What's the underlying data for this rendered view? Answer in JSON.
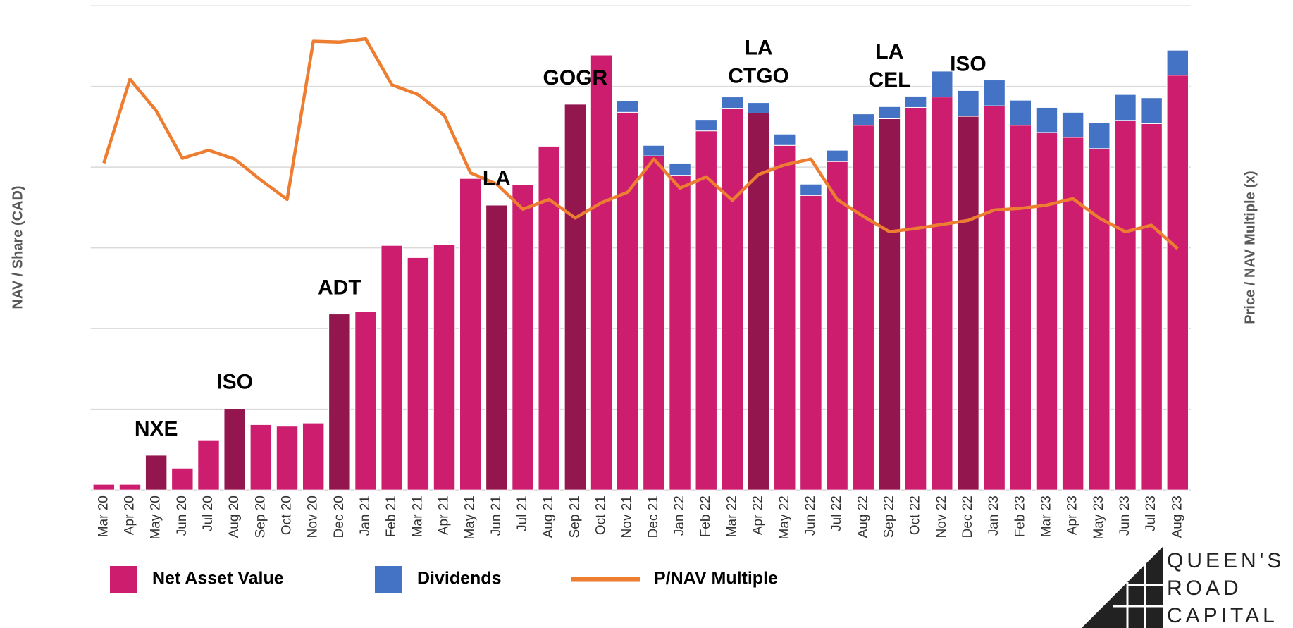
{
  "chart_data": {
    "type": "bar",
    "y_label": "NAV / Share (CAD)",
    "y2_label": "Price / NAV Multiple (x)",
    "categories": [
      "Mar 20",
      "Apr 20",
      "May 20",
      "Jun 20",
      "Jul 20",
      "Aug 20",
      "Sep 20",
      "Oct 20",
      "Nov 20",
      "Dec 20",
      "Jan 21",
      "Feb 21",
      "Mar 21",
      "Apr 21",
      "May 21",
      "Jun 21",
      "Jul 21",
      "Aug 21",
      "Sep 21",
      "Oct 21",
      "Nov 21",
      "Dec 21",
      "Jan 22",
      "Feb 22",
      "Mar 22",
      "Apr 22",
      "May 22",
      "Jun 22",
      "Jul 22",
      "Aug 22",
      "Sep 22",
      "Oct 22",
      "Nov 22",
      "Dec 22",
      "Jan 23",
      "Feb 23",
      "Mar 23",
      "Apr 23",
      "May 23",
      "Jun 23",
      "Jul 23",
      "Aug 23"
    ],
    "series": [
      {
        "name": "Net Asset Value",
        "color": "#cc1d6e",
        "stack": true,
        "colors": [
          "#cc1d6e",
          "#cc1d6e",
          "#93174e",
          "#cc1d6e",
          "#cc1d6e",
          "#93174e",
          "#cc1d6e",
          "#cc1d6e",
          "#cc1d6e",
          "#93174e",
          "#cc1d6e",
          "#cc1d6e",
          "#cc1d6e",
          "#cc1d6e",
          "#cc1d6e",
          "#93174e",
          "#cc1d6e",
          "#cc1d6e",
          "#93174e",
          "#cc1d6e",
          "#cc1d6e",
          "#cc1d6e",
          "#cc1d6e",
          "#cc1d6e",
          "#cc1d6e",
          "#93174e",
          "#cc1d6e",
          "#cc1d6e",
          "#cc1d6e",
          "#cc1d6e",
          "#93174e",
          "#cc1d6e",
          "#cc1d6e",
          "#93174e",
          "#cc1d6e",
          "#cc1d6e",
          "#cc1d6e",
          "#cc1d6e",
          "#cc1d6e",
          "#cc1d6e",
          "#cc1d6e",
          "#cc1d6e"
        ],
        "values": [
          0.07,
          0.07,
          0.43,
          0.27,
          0.62,
          1.01,
          0.81,
          0.79,
          0.83,
          2.18,
          2.21,
          3.03,
          2.88,
          3.04,
          3.86,
          3.53,
          3.78,
          4.26,
          4.78,
          5.39,
          4.68,
          4.14,
          3.9,
          4.45,
          4.73,
          4.67,
          4.27,
          3.65,
          4.07,
          4.52,
          4.6,
          4.74,
          4.87,
          4.63,
          4.76,
          4.52,
          4.43,
          4.37,
          4.23,
          4.58,
          4.54,
          5.14
        ]
      },
      {
        "name": "Dividends",
        "color": "#4472c4",
        "stack": true,
        "values": [
          null,
          null,
          null,
          null,
          null,
          null,
          null,
          null,
          null,
          null,
          null,
          null,
          null,
          null,
          null,
          null,
          null,
          null,
          null,
          null,
          0.14,
          0.13,
          0.15,
          0.14,
          0.14,
          0.13,
          0.14,
          0.14,
          0.14,
          0.14,
          0.15,
          0.14,
          0.32,
          0.32,
          0.32,
          0.31,
          0.31,
          0.31,
          0.32,
          0.32,
          0.32,
          0.31
        ]
      },
      {
        "name": "P/NAV Multiple",
        "color": "#ed7d31",
        "kind": "line",
        "axis": "y2",
        "values": [
          4.05,
          5.09,
          4.7,
          4.11,
          4.21,
          4.1,
          3.84,
          3.6,
          5.56,
          5.55,
          5.59,
          5.02,
          4.9,
          4.64,
          3.93,
          3.79,
          3.48,
          3.6,
          3.37,
          3.56,
          3.69,
          4.1,
          3.74,
          3.88,
          3.59,
          3.91,
          4.03,
          4.1,
          3.6,
          3.39,
          3.2,
          3.24,
          3.29,
          3.34,
          3.47,
          3.49,
          3.53,
          3.61,
          3.37,
          3.2,
          3.28,
          2.99
        ]
      }
    ],
    "ylim": [
      0,
      6
    ],
    "yticks": [
      0,
      1,
      2,
      3,
      4,
      5,
      6
    ],
    "grid": true,
    "y2lim": [
      0,
      6
    ],
    "annotations": [
      {
        "text": [
          "NXE"
        ],
        "category": "May 20"
      },
      {
        "text": [
          "ISO"
        ],
        "category": "Aug 20"
      },
      {
        "text": [
          "ADT"
        ],
        "category": "Dec 20"
      },
      {
        "text": [
          "LA"
        ],
        "category": "Jun 21"
      },
      {
        "text": [
          "GOGR"
        ],
        "category": "Sep 21"
      },
      {
        "text": [
          "LA",
          "CTGO"
        ],
        "category": "Apr 22"
      },
      {
        "text": [
          "LA",
          "CEL"
        ],
        "category": "Sep 22"
      },
      {
        "text": [
          "ISO"
        ],
        "category": "Dec 22"
      }
    ],
    "legend": "bottom"
  },
  "logo": {
    "lines": [
      "QUEEN'S",
      "ROAD",
      "CAPITAL"
    ]
  }
}
